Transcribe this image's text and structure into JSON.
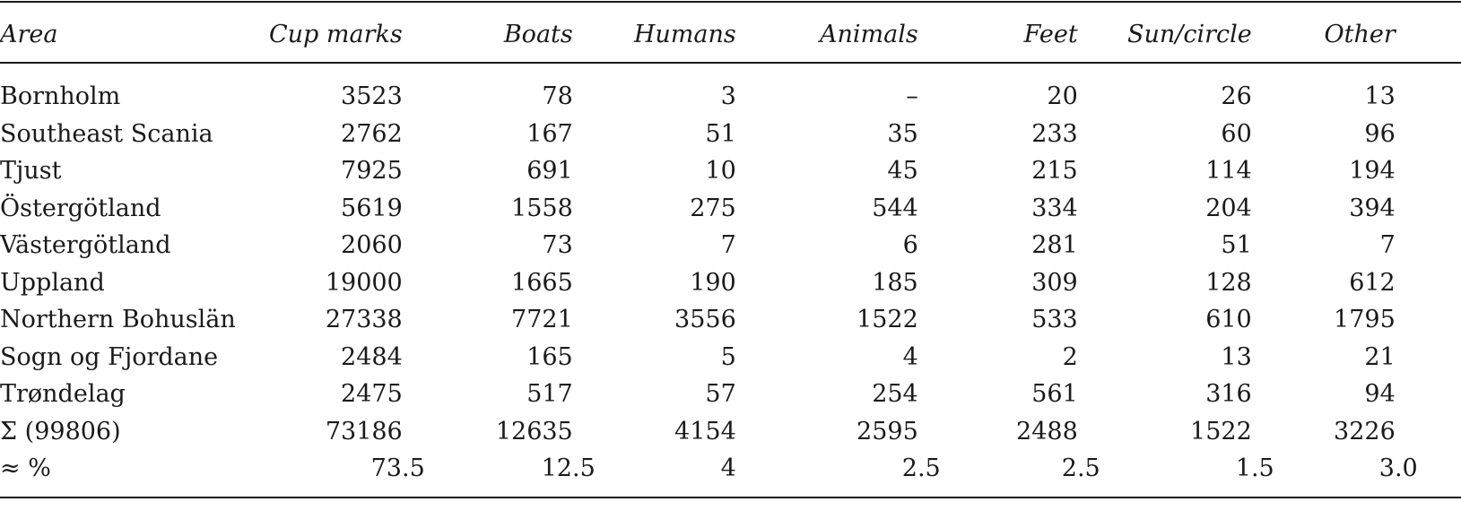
{
  "table": {
    "headers": [
      "Area",
      "Cup marks",
      "Boats",
      "Humans",
      "Animals",
      "Feet",
      "Sun/circle",
      "Other"
    ],
    "rows": [
      [
        "Bornholm",
        "3523",
        "78",
        "3",
        "–",
        "20",
        "26",
        "13"
      ],
      [
        "Southeast Scania",
        "2762",
        "167",
        "51",
        "35",
        "233",
        "60",
        "96"
      ],
      [
        "Tjust",
        "7925",
        "691",
        "10",
        "45",
        "215",
        "114",
        "194"
      ],
      [
        "Östergötland",
        "5619",
        "1558",
        "275",
        "544",
        "334",
        "204",
        "394"
      ],
      [
        "Västergötland",
        "2060",
        "73",
        "7",
        "6",
        "281",
        "51",
        "7"
      ],
      [
        "Uppland",
        "19000",
        "1665",
        "190",
        "185",
        "309",
        "128",
        "612"
      ],
      [
        "Northern Bohuslän",
        "27338",
        "7721",
        "3556",
        "1522",
        "533",
        "610",
        "1795"
      ],
      [
        "Sogn og Fjordane",
        "2484",
        "165",
        "5",
        "4",
        "2",
        "13",
        "21"
      ],
      [
        "Trøndelag",
        "2475",
        "517",
        "57",
        "254",
        "561",
        "316",
        "94"
      ],
      [
        "Σ (99806)",
        "73186",
        "12635",
        "4154",
        "2595",
        "2488",
        "1522",
        "3226"
      ],
      [
        "≈ %",
        "73.5",
        "12.5",
        "4",
        "2.5",
        "2.5",
        "1.5",
        "3.0"
      ]
    ]
  }
}
